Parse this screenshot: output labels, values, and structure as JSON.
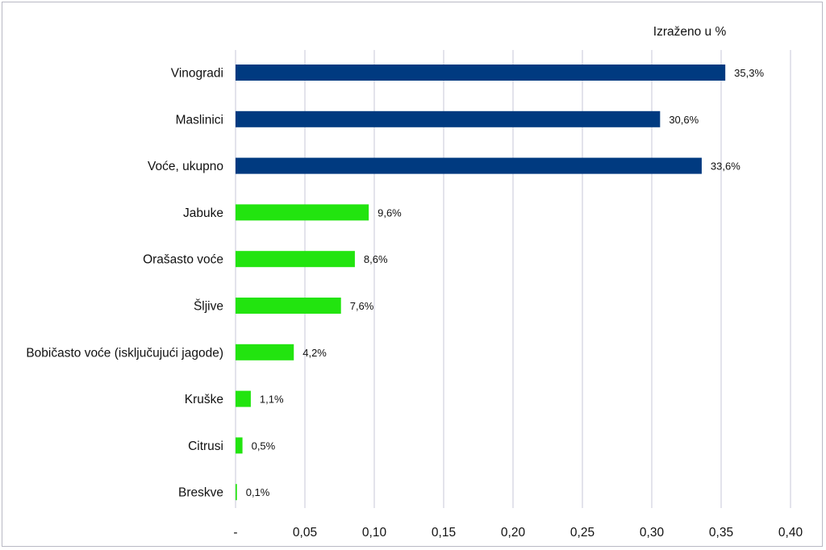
{
  "chart_data": {
    "type": "bar",
    "orientation": "horizontal",
    "unit_note": "Izraženo u %",
    "categories": [
      "Vinogradi",
      "Maslinici",
      "Voće, ukupno",
      "Jabuke",
      "Orašasto voće",
      "Šljive",
      "Bobičasto voće (isključujući jagode)",
      "Kruške",
      "Citrusi",
      "Breskve"
    ],
    "values": [
      0.353,
      0.306,
      0.336,
      0.096,
      0.086,
      0.076,
      0.042,
      0.011,
      0.005,
      0.001
    ],
    "data_labels": [
      "35,3%",
      "30,6%",
      "33,6%",
      "9,6%",
      "8,6%",
      "7,6%",
      "4,2%",
      "1,1%",
      "0,5%",
      "0,1%"
    ],
    "bar_colors": [
      "#003a80",
      "#003a80",
      "#003a80",
      "#22e40f",
      "#22e40f",
      "#22e40f",
      "#22e40f",
      "#22e40f",
      "#22e40f",
      "#22e40f"
    ],
    "xlim": [
      0,
      0.4
    ],
    "x_ticks": [
      0,
      0.05,
      0.1,
      0.15,
      0.2,
      0.25,
      0.3,
      0.35,
      0.4
    ],
    "x_tick_labels": [
      "-",
      "0,05",
      "0,10",
      "0,15",
      "0,20",
      "0,25",
      "0,30",
      "0,35",
      "0,40"
    ],
    "grid": "vertical",
    "gridline_color": "#d0d0de"
  }
}
